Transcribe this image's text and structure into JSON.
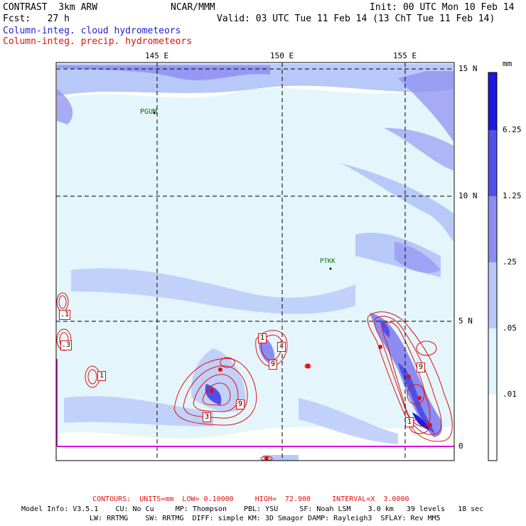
{
  "header": {
    "model_title": "CONTRAST  3km ARW",
    "forecast": "Fcst:   27 h",
    "center": "NCAR/MMM",
    "init": "Init: 00 UTC Mon 10 Feb 14",
    "valid": "Valid: 03 UTC Tue 11 Feb 14 (13 ChT Tue 11 Feb 14)",
    "field_cloud": "Column-integ. cloud hydrometeors",
    "field_precip": "Column-integ. precip. hydrometeors"
  },
  "map": {
    "lon_labels": [
      "145 E",
      "150 E",
      "155 E"
    ],
    "lat_labels": [
      "15 N",
      "10 N",
      "5 N",
      "0"
    ],
    "stations": [
      {
        "id": "PGUM"
      },
      {
        "id": "PTKK"
      }
    ],
    "precip_contour_labels": [
      ".1",
      ".3",
      "1",
      "1",
      "4",
      "9",
      "9",
      "3",
      "9",
      "1"
    ]
  },
  "colorbar": {
    "unit": "mm",
    "levels": [
      "6.25",
      "1.25",
      ".25",
      ".05",
      ".01"
    ],
    "colors": [
      "#1a1ae0",
      "#5050e8",
      "#8c8cf0",
      "#b8c8f8",
      "#dff4fc",
      "#ffffff"
    ]
  },
  "footer": {
    "contours": "CONTOURS:  UNITS=mm  LOW= 0.10000     HIGH=  72.900     INTERVAL=X  3.0000",
    "model_info_1": "Model Info: V3.5.1    CU: No Cu     MP: Thompson    PBL: YSU     SF: Noah LSM    3.0 km   39 levels   18 sec",
    "model_info_2": "LW: RRTMG    SW: RRTMG  DIFF: simple KM: 3D Smagor DAMP: Rayleigh3  SFLAY: Rev MM5"
  },
  "colors": {
    "cloud_light": "#dff4fc",
    "cloud_mid": "#b8c8f8",
    "cloud_dark": "#8c8cf0",
    "precip_contour": "#e01010",
    "domain_edge": "#e010e0"
  }
}
